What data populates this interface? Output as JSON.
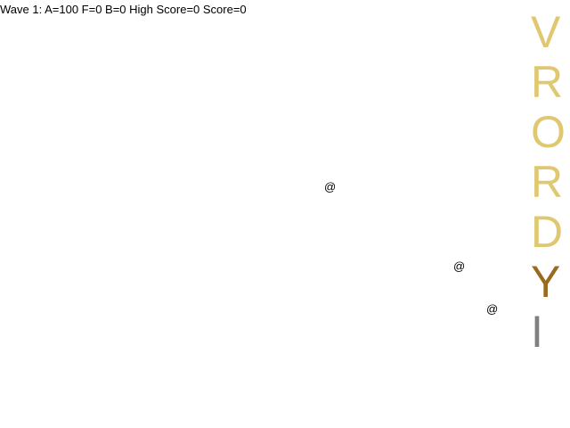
{
  "hud": {
    "status_text": "Wave 1: A=100 F=0 B=0 High Score=0 Score=0"
  },
  "entities": [
    {
      "glyph": "@"
    },
    {
      "glyph": "@"
    },
    {
      "glyph": "@"
    }
  ],
  "word_column": {
    "letters": [
      {
        "char": "V",
        "color": "#e0c870"
      },
      {
        "char": "R",
        "color": "#e0c870"
      },
      {
        "char": "O",
        "color": "#e0c870"
      },
      {
        "char": "R",
        "color": "#e0c870"
      },
      {
        "char": "D",
        "color": "#e0c870"
      },
      {
        "char": "Y",
        "color": "#9a6a1e"
      },
      {
        "char": "I",
        "color": "#808080"
      }
    ]
  }
}
